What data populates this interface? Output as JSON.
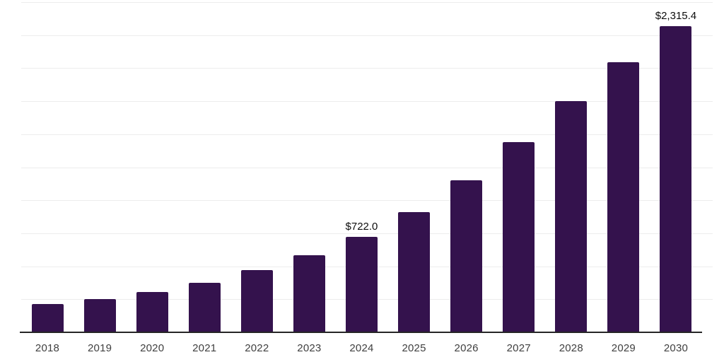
{
  "chart_data": {
    "type": "bar",
    "title": "",
    "xlabel": "",
    "ylabel": "",
    "categories": [
      "2018",
      "2019",
      "2020",
      "2021",
      "2022",
      "2023",
      "2024",
      "2025",
      "2026",
      "2027",
      "2028",
      "2029",
      "2030"
    ],
    "values": [
      214,
      250,
      305,
      375,
      473,
      583,
      722.0,
      910,
      1151,
      1440,
      1750,
      2046,
      2315.4
    ],
    "data_labels": [
      "",
      "",
      "",
      "",
      "",
      "",
      "$722.0",
      "",
      "",
      "",
      "",
      "",
      "$2,315.4"
    ],
    "ylim": [
      0,
      2500
    ],
    "gridline_interval": 250,
    "grid": "horizontal",
    "legend": "none",
    "colors": {
      "bar": "#34124d",
      "axis_line": "#262626",
      "gridline": "#ededed",
      "tick_label": "#404040",
      "data_label": "#0d0d0d",
      "background": "#ffffff"
    }
  }
}
